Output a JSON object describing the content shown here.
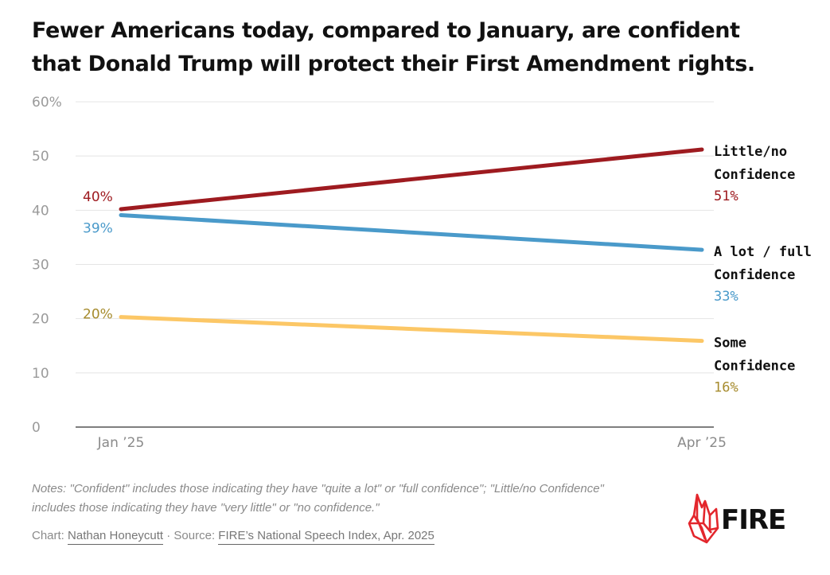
{
  "title": "Fewer Americans today, compared to January, are confident that Donald Trump will protect their First Amendment rights.",
  "colors": {
    "little": "#9e1b20",
    "alot": "#4a9aca",
    "some": "#fcc766",
    "some_text": "#a68b2d",
    "grid": "#e4e4e4",
    "axis_text": "#9a9a9a",
    "brand": "#e3262c"
  },
  "chart_data": {
    "type": "line",
    "x": [
      "Jan ’25",
      "Apr ’25"
    ],
    "ylim": [
      0,
      60
    ],
    "yticks": [
      0,
      10,
      20,
      30,
      40,
      50,
      60
    ],
    "ytick_labels": [
      "0",
      "10",
      "20",
      "30",
      "40",
      "50",
      "60%"
    ],
    "grid": true,
    "series": [
      {
        "name": "Little/no Confidence",
        "label_lines": [
          "Little/no",
          "Confidence"
        ],
        "values": [
          40.2,
          51.2
        ],
        "start_label": "40%",
        "end_label": "51%",
        "color_key": "little",
        "text_color_key": "little"
      },
      {
        "name": "A lot / full Confidence",
        "label_lines": [
          "A lot / full",
          "Confidence"
        ],
        "values": [
          39.1,
          32.7
        ],
        "start_label": "39%",
        "end_label": "33%",
        "color_key": "alot",
        "text_color_key": "alot"
      },
      {
        "name": "Some Confidence",
        "label_lines": [
          "Some",
          "Confidence"
        ],
        "values": [
          20.3,
          15.9
        ],
        "start_label": "20%",
        "end_label": "16%",
        "color_key": "some",
        "text_color_key": "some_text"
      }
    ]
  },
  "notes": {
    "line1": "Notes: \"Confident\" includes those indicating they have \"quite a lot\" or \"full confidence\"; \"Little/no Confidence\"",
    "line2": "includes those indicating they have \"very little\" or \"no confidence.\""
  },
  "credit": {
    "chart_prefix": "Chart: ",
    "author": "Nathan Honeycutt",
    "separator": " · Source: ",
    "source": "FIRE’s National Speech Index, Apr. 2025"
  },
  "logo": {
    "text": "FIRE",
    "icon": "flame-icon"
  }
}
